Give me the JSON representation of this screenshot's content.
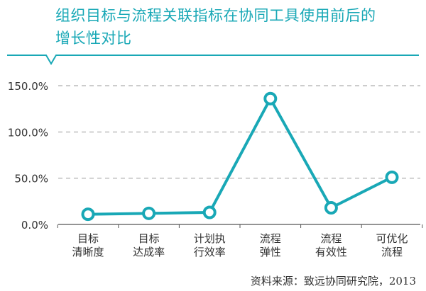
{
  "header": {
    "title_line1": "组织目标与流程关联指标在协同工具使用前后的",
    "title_line2": "增长性对比"
  },
  "footer": {
    "source": "资料来源：致远协同研究院，2013"
  },
  "colors": {
    "accent": "#19a8b6",
    "grid": "#9a9a9a",
    "axis": "#555555",
    "text": "#333333"
  },
  "chart_data": {
    "type": "line",
    "categories": [
      [
        "目标",
        "清晰度"
      ],
      [
        "目标",
        "达成率"
      ],
      [
        "计划执",
        "行效率"
      ],
      [
        "流程",
        "弹性"
      ],
      [
        "流程",
        "有效性"
      ],
      [
        "可优化",
        "流程"
      ]
    ],
    "values": [
      11,
      12,
      13,
      136,
      18,
      51
    ],
    "yticks": [
      "0.0%",
      "50.0%",
      "100.0%",
      "150.0%"
    ],
    "ytick_values": [
      0,
      50,
      100,
      150
    ],
    "ylim": [
      0,
      150
    ],
    "grid": true,
    "grid_style": "dashed",
    "legend": "none",
    "marker": "circle-hollow"
  }
}
